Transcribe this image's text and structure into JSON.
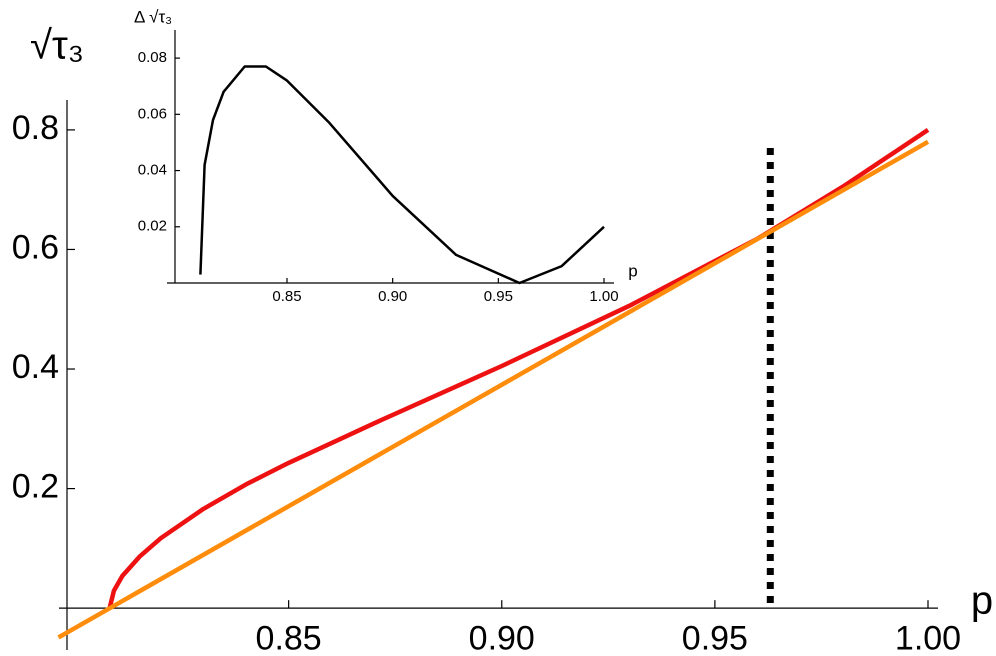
{
  "chart_data": [
    {
      "type": "line",
      "x_label": "p",
      "y_label": "√τ₃",
      "xlim": [
        0.798,
        1.0
      ],
      "ylim": [
        -0.07,
        0.85
      ],
      "xticks": [
        0.85,
        {
          "value": 0.9,
          "label": "0.90"
        },
        0.95,
        {
          "value": 1.0,
          "label": "1.00"
        }
      ],
      "yticks": [
        0.2,
        0.4,
        0.6,
        0.8
      ],
      "vline": 0.963,
      "series": [
        {
          "name": "red",
          "color": "#ee1111",
          "x": [
            0.808,
            0.809,
            0.811,
            0.815,
            0.82,
            0.83,
            0.84,
            0.85,
            0.87,
            0.9,
            0.93,
            0.96,
            0.98,
            1.0
          ],
          "values": [
            0,
            0.029,
            0.054,
            0.086,
            0.117,
            0.166,
            0.207,
            0.243,
            0.309,
            0.405,
            0.506,
            0.618,
            0.705,
            0.8
          ]
        },
        {
          "name": "orange",
          "color": "#ff8c0a",
          "x": [
            0.796,
            1.0
          ],
          "values": [
            -0.049,
            0.78
          ]
        }
      ]
    },
    {
      "type": "line",
      "x_label": "p",
      "y_label": "Δ √τ₃",
      "xlim": [
        0.797,
        1.0
      ],
      "ylim": [
        0,
        0.09
      ],
      "xticks": [
        0.85,
        {
          "value": 0.9,
          "label": "0.90"
        },
        0.95,
        {
          "value": 1.0,
          "label": "1.00"
        }
      ],
      "yticks": [
        0.02,
        0.04,
        0.06,
        0.08
      ],
      "series": [
        {
          "name": "difference",
          "color": "#000000",
          "x": [
            0.809,
            0.811,
            0.815,
            0.82,
            0.83,
            0.84,
            0.85,
            0.87,
            0.9,
            0.93,
            0.96,
            0.98,
            1.0
          ],
          "values": [
            0.003,
            0.042,
            0.058,
            0.068,
            0.077,
            0.077,
            0.072,
            0.057,
            0.031,
            0.01,
            0.0,
            0.006,
            0.02
          ]
        }
      ]
    }
  ]
}
